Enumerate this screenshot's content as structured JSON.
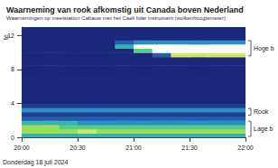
{
  "chart_data": {
    "type": "heatmap",
    "title": "Waarneming van rook afkomstig uit Canada boven Nederland",
    "subtitle": "Waarnemingen op meetstation Cabauw met het Caeli lidar instrument (wolkenhoogtemeter)",
    "ylabel": "te",
    "xlabel": "Donderdag 18 juli 2024",
    "xlim": [
      1200,
      1320
    ],
    "xticks": [
      {
        "value": 1200,
        "label": "20:00"
      },
      {
        "value": 1230,
        "label": "20:30"
      },
      {
        "value": 1260,
        "label": "21:00"
      },
      {
        "value": 1290,
        "label": "21:30"
      },
      {
        "value": 1320,
        "label": "22:00"
      }
    ],
    "ylim": [
      0,
      13
    ],
    "yticks": [
      0,
      4,
      8,
      12
    ],
    "tick_labels": true,
    "value_range": [
      0,
      10
    ],
    "cells": {
      "x": [
        1200,
        1210,
        1220,
        1230,
        1240,
        1250,
        1260,
        1270,
        1280,
        1290,
        1300,
        1310
      ],
      "y": [
        0,
        0.5,
        1,
        1.5,
        2,
        2.5,
        3,
        3.5,
        4,
        4.5,
        5,
        5.5,
        6,
        6.5,
        7,
        7.5,
        8,
        8.5,
        9,
        9.5,
        10,
        10.5,
        11,
        11.5,
        12,
        12.5
      ],
      "values": [
        [
          5,
          5,
          5,
          5,
          5,
          5,
          5,
          5,
          5,
          5,
          5,
          5
        ],
        [
          7,
          7,
          7,
          8,
          7,
          7,
          7,
          7,
          7,
          7,
          7,
          7
        ],
        [
          7,
          7,
          6,
          6,
          6,
          6,
          6,
          6,
          6,
          6,
          6,
          6
        ],
        [
          5,
          5,
          5,
          4,
          4,
          4,
          4,
          4,
          4,
          4,
          4,
          4
        ],
        [
          3,
          3,
          3,
          3,
          3,
          3,
          3,
          3,
          3,
          3,
          3,
          3
        ],
        [
          2,
          2,
          2,
          2,
          2,
          2,
          2,
          2,
          2,
          2,
          2,
          2
        ],
        [
          4,
          4,
          4,
          4,
          4,
          4,
          4,
          4,
          4,
          4,
          4,
          4
        ],
        [
          2,
          2,
          2,
          2,
          2,
          2,
          2,
          2,
          2,
          2,
          2,
          2
        ],
        [
          1,
          1,
          1,
          1,
          1,
          1,
          1,
          1,
          1,
          1,
          1,
          1
        ],
        [
          1,
          1,
          1,
          1,
          1,
          1,
          1,
          1,
          1,
          1,
          1,
          1
        ],
        [
          1,
          1,
          1,
          1,
          1,
          1,
          1,
          1,
          1,
          1,
          1,
          1
        ],
        [
          1,
          1,
          1,
          1,
          1,
          1,
          1,
          1,
          1,
          1,
          1,
          1
        ],
        [
          1,
          1,
          1,
          1,
          1,
          1,
          1,
          1,
          1,
          1,
          1,
          1
        ],
        [
          1,
          1,
          1,
          1,
          1,
          1,
          1,
          1,
          1,
          1,
          1,
          1
        ],
        [
          1,
          1,
          1,
          1,
          1,
          1,
          1,
          1,
          1,
          1,
          1,
          1
        ],
        [
          1,
          1,
          1,
          1,
          1,
          1,
          1,
          1,
          1,
          1,
          1,
          1
        ],
        [
          1,
          1,
          1,
          1,
          1,
          1,
          1,
          1,
          1,
          1,
          1,
          1
        ],
        [
          1,
          1,
          1,
          1,
          1,
          1,
          1,
          1,
          1,
          1,
          1,
          1
        ],
        [
          1,
          1,
          1,
          1,
          1,
          1,
          1,
          1,
          1,
          1,
          1,
          1
        ],
        [
          1,
          1,
          1,
          1,
          1,
          1,
          1,
          3,
          8,
          8,
          8,
          8
        ],
        [
          1,
          1,
          1,
          1,
          1,
          1,
          6,
          10,
          10,
          10,
          10,
          10
        ],
        [
          1,
          1,
          1,
          1,
          1,
          5,
          10,
          10,
          10,
          10,
          10,
          10
        ],
        [
          1,
          1,
          1,
          1,
          1,
          3,
          4,
          4,
          4,
          4,
          4,
          4
        ],
        [
          1,
          1,
          1,
          1,
          1,
          1,
          1,
          1,
          1,
          1,
          1,
          1
        ],
        [
          1,
          1,
          1,
          1,
          1,
          1,
          1,
          1,
          1,
          1,
          1,
          1
        ],
        [
          1,
          1,
          1,
          1,
          1,
          1,
          1,
          1,
          1,
          1,
          1,
          1
        ]
      ]
    },
    "annotations": [
      {
        "label": "Hoge b",
        "y": [
          9.5,
          11.5
        ]
      },
      {
        "label": "Rook",
        "y": [
          2.5,
          3.5
        ]
      },
      {
        "label": "Lage b",
        "y": [
          0,
          2
        ]
      }
    ]
  }
}
